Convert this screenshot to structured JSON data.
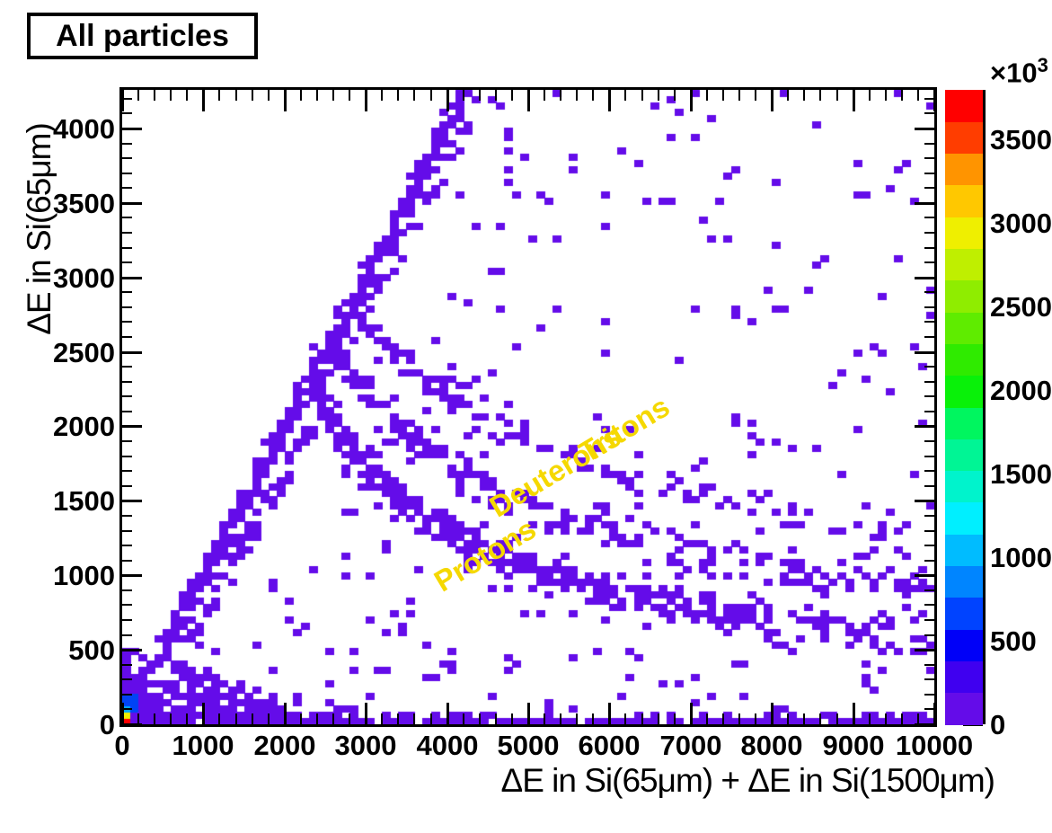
{
  "chart_data": {
    "type": "2d_histogram",
    "title": "All particles",
    "xlabel": "ΔE in Si(65μm) + ΔE in Si(1500μm)",
    "ylabel": "ΔE in Si(65μm)",
    "xlim": [
      0,
      10000
    ],
    "ylim": [
      0,
      4259
    ],
    "bins": {
      "nx": 100,
      "ny": 100
    },
    "x_axis": {
      "major_tick_values": [
        0,
        1000,
        2000,
        3000,
        4000,
        5000,
        6000,
        7000,
        8000,
        9000,
        10000
      ],
      "minor_tick_step": 200
    },
    "y_axis": {
      "major_tick_values": [
        0,
        500,
        1000,
        1500,
        2000,
        2500,
        3000,
        3500,
        4000
      ],
      "minor_tick_step": 100
    },
    "colorbar": {
      "zlim": [
        0,
        3796
      ],
      "major_tick_values": [
        0,
        500,
        1000,
        1500,
        2000,
        2500,
        3000,
        3500
      ],
      "minor_tick_step": 100,
      "multiplier": "×10",
      "multiplier_exponent": "3",
      "palette_bottom_to_top": [
        "#640CE9",
        "#3F00F0",
        "#0000F8",
        "#0043FF",
        "#0085FF",
        "#00BCFF",
        "#00EFFF",
        "#00F3CC",
        "#00F595",
        "#00F65F",
        "#09F109",
        "#2FEB00",
        "#5FEC00",
        "#8FED00",
        "#BFEF00",
        "#EFEF00",
        "#FFC800",
        "#FF9400",
        "#FF3D00",
        "#FF0000"
      ]
    },
    "bin_color": "#640CE9",
    "annotations": [
      {
        "text": "Tritons",
        "x": 6184,
        "y": 1979,
        "rotation_deg": -31,
        "color": "#F5D800"
      },
      {
        "text": "Deuterons",
        "x": 5332,
        "y": 1695,
        "rotation_deg": -31,
        "color": "#F5D800"
      },
      {
        "text": "Protons",
        "x": 4469,
        "y": 1134,
        "rotation_deg": -31,
        "color": "#F5D800"
      }
    ],
    "loci": [
      {
        "name": "punch-through-diagonal",
        "points": [
          [
            0,
            0
          ],
          [
            4300,
            4300
          ]
        ],
        "half_width": 55,
        "density": 0.72,
        "taper": 0.05
      },
      {
        "name": "diagonal-fuzz",
        "points": [
          [
            500,
            300
          ],
          [
            2500,
            2150
          ]
        ],
        "half_width": 120,
        "density": 0.12,
        "taper": 0
      },
      {
        "name": "apex-cloud",
        "points": [
          [
            2600,
            2400
          ],
          [
            4300,
            4050
          ]
        ],
        "half_width": 130,
        "density": 0.1,
        "taper": 0
      },
      {
        "name": "protons-band",
        "label": "Protons",
        "points": [
          [
            2350,
            2280
          ],
          [
            2700,
            1950
          ],
          [
            3100,
            1680
          ],
          [
            3600,
            1430
          ],
          [
            4200,
            1230
          ],
          [
            5000,
            1040
          ],
          [
            6000,
            900
          ],
          [
            7000,
            790
          ],
          [
            8000,
            700
          ],
          [
            9000,
            630
          ],
          [
            10000,
            580
          ]
        ],
        "half_width": 105,
        "density": 0.5,
        "taper": 0.3
      },
      {
        "name": "deuterons-band",
        "label": "Deuterons",
        "points": [
          [
            2600,
            2520
          ],
          [
            3000,
            2230
          ],
          [
            3500,
            1960
          ],
          [
            4100,
            1730
          ],
          [
            4800,
            1530
          ],
          [
            5600,
            1360
          ],
          [
            6500,
            1220
          ],
          [
            7500,
            1100
          ],
          [
            8700,
            990
          ],
          [
            10000,
            900
          ]
        ],
        "half_width": 95,
        "density": 0.3,
        "taper": 0.4
      },
      {
        "name": "tritons-band",
        "label": "Tritons",
        "points": [
          [
            2850,
            2780
          ],
          [
            3300,
            2500
          ],
          [
            3900,
            2240
          ],
          [
            4600,
            2010
          ],
          [
            5400,
            1810
          ],
          [
            6300,
            1640
          ],
          [
            7300,
            1490
          ],
          [
            8400,
            1360
          ],
          [
            9700,
            1240
          ]
        ],
        "half_width": 85,
        "density": 0.22,
        "taper": 0.42
      }
    ],
    "background": {
      "wedge": {
        "x_max": 2900,
        "y_max": 430,
        "density": 0.9
      },
      "bottom_rows": [
        {
          "y_bin": 0,
          "density": 0.85
        },
        {
          "y_bin": 1,
          "density": 0.45,
          "density_after_x": 3000,
          "density_far": 0.25
        }
      ],
      "random_scatter": {
        "count": 430,
        "seed": 12345,
        "low_y_bias": 0.6
      }
    },
    "special_bins": [
      {
        "bx": 0,
        "by": 0,
        "color": "#FF0000"
      },
      {
        "bx": 0,
        "by": 1,
        "color": "#EFEF00"
      },
      {
        "bx": 0,
        "by": 2,
        "color": "#00A8FF"
      },
      {
        "bx": 1,
        "by": 2,
        "color": "#0143F5"
      },
      {
        "bx": 0,
        "by": 3,
        "color": "#0143F5"
      },
      {
        "bx": 1,
        "by": 3,
        "color": "#0143F5"
      },
      {
        "bx": 0,
        "by": 4,
        "color": "#0143F5"
      },
      {
        "bx": 1,
        "by": 4,
        "color": "#0143F5"
      }
    ]
  }
}
